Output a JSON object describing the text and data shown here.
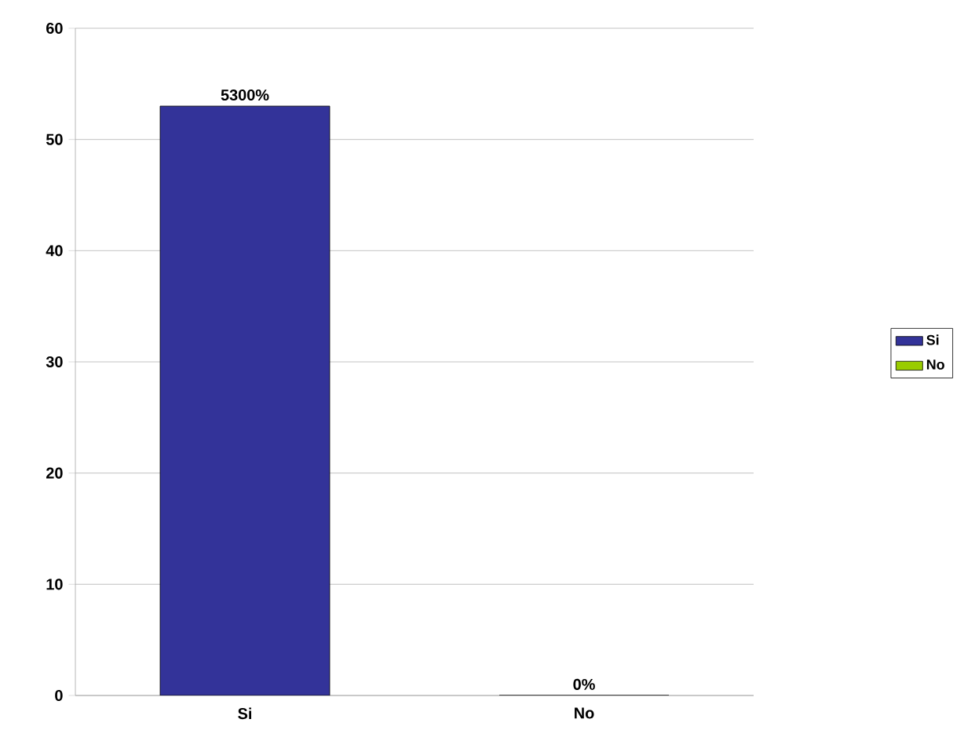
{
  "chart_data": {
    "type": "bar",
    "categories": [
      "Si",
      "No"
    ],
    "series": [
      {
        "name": "Si",
        "color": "#333399",
        "values": [
          53,
          null
        ],
        "value_labels": [
          "5300%",
          null
        ]
      },
      {
        "name": "No",
        "color": "#99cc00",
        "values": [
          null,
          0
        ],
        "value_labels": [
          null,
          "0%"
        ]
      }
    ],
    "ylim": [
      0,
      60
    ],
    "yticks": [
      0,
      10,
      20,
      30,
      40,
      50,
      60
    ],
    "grid": "y",
    "legend": "right"
  }
}
